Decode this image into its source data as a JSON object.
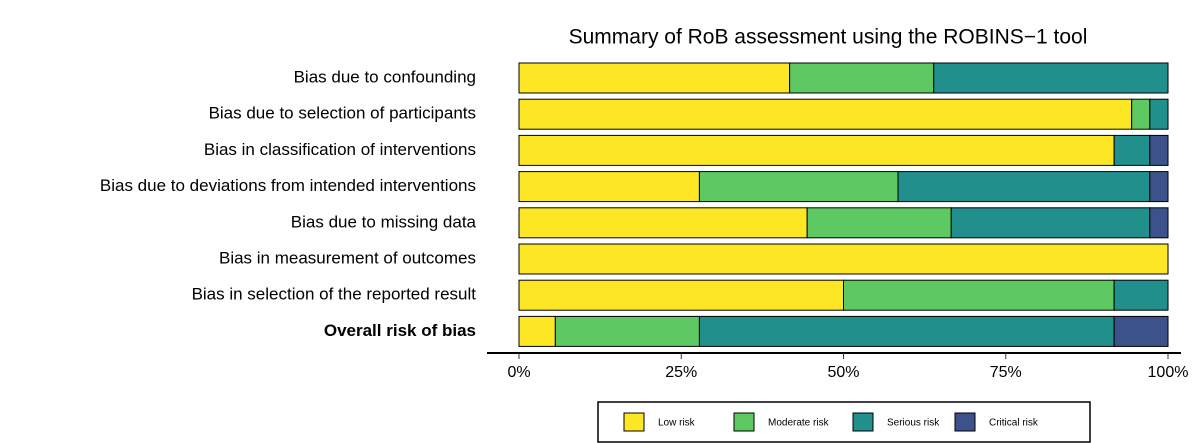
{
  "chart_data": {
    "type": "stacked_barh",
    "title": "Summary of RoB assessment using the ROBINS−1 tool",
    "categories": [
      "Bias due to confounding",
      "Bias due to selection of participants",
      "Bias in classification of interventions",
      "Bias due to deviations from intended interventions",
      "Bias due to missing data",
      "Bias in measurement of outcomes",
      "Bias in selection of the reported result",
      "Overall risk of bias"
    ],
    "series": [
      {
        "name": "Low risk",
        "color": "#fde725",
        "values": [
          41.7,
          94.4,
          91.7,
          27.8,
          44.4,
          100,
          50,
          5.6
        ]
      },
      {
        "name": "Moderate risk",
        "color": "#5ec962",
        "values": [
          22.2,
          2.8,
          0,
          30.6,
          22.2,
          0,
          41.7,
          22.2
        ]
      },
      {
        "name": "Serious risk",
        "color": "#21908c",
        "values": [
          36.1,
          2.8,
          5.5,
          38.8,
          30.6,
          0,
          8.3,
          63.9
        ]
      },
      {
        "name": "Critical risk",
        "color": "#3b528b",
        "values": [
          0,
          0,
          2.8,
          2.8,
          2.8,
          0,
          0,
          8.3
        ]
      }
    ],
    "xlim": [
      0,
      100
    ],
    "xticks": [
      {
        "value": 0,
        "label": "0%"
      },
      {
        "value": 25,
        "label": "25%"
      },
      {
        "value": 50,
        "label": "50%"
      },
      {
        "value": 75,
        "label": "75%"
      },
      {
        "value": 100,
        "label": "100%"
      }
    ],
    "legend": "bottom"
  }
}
